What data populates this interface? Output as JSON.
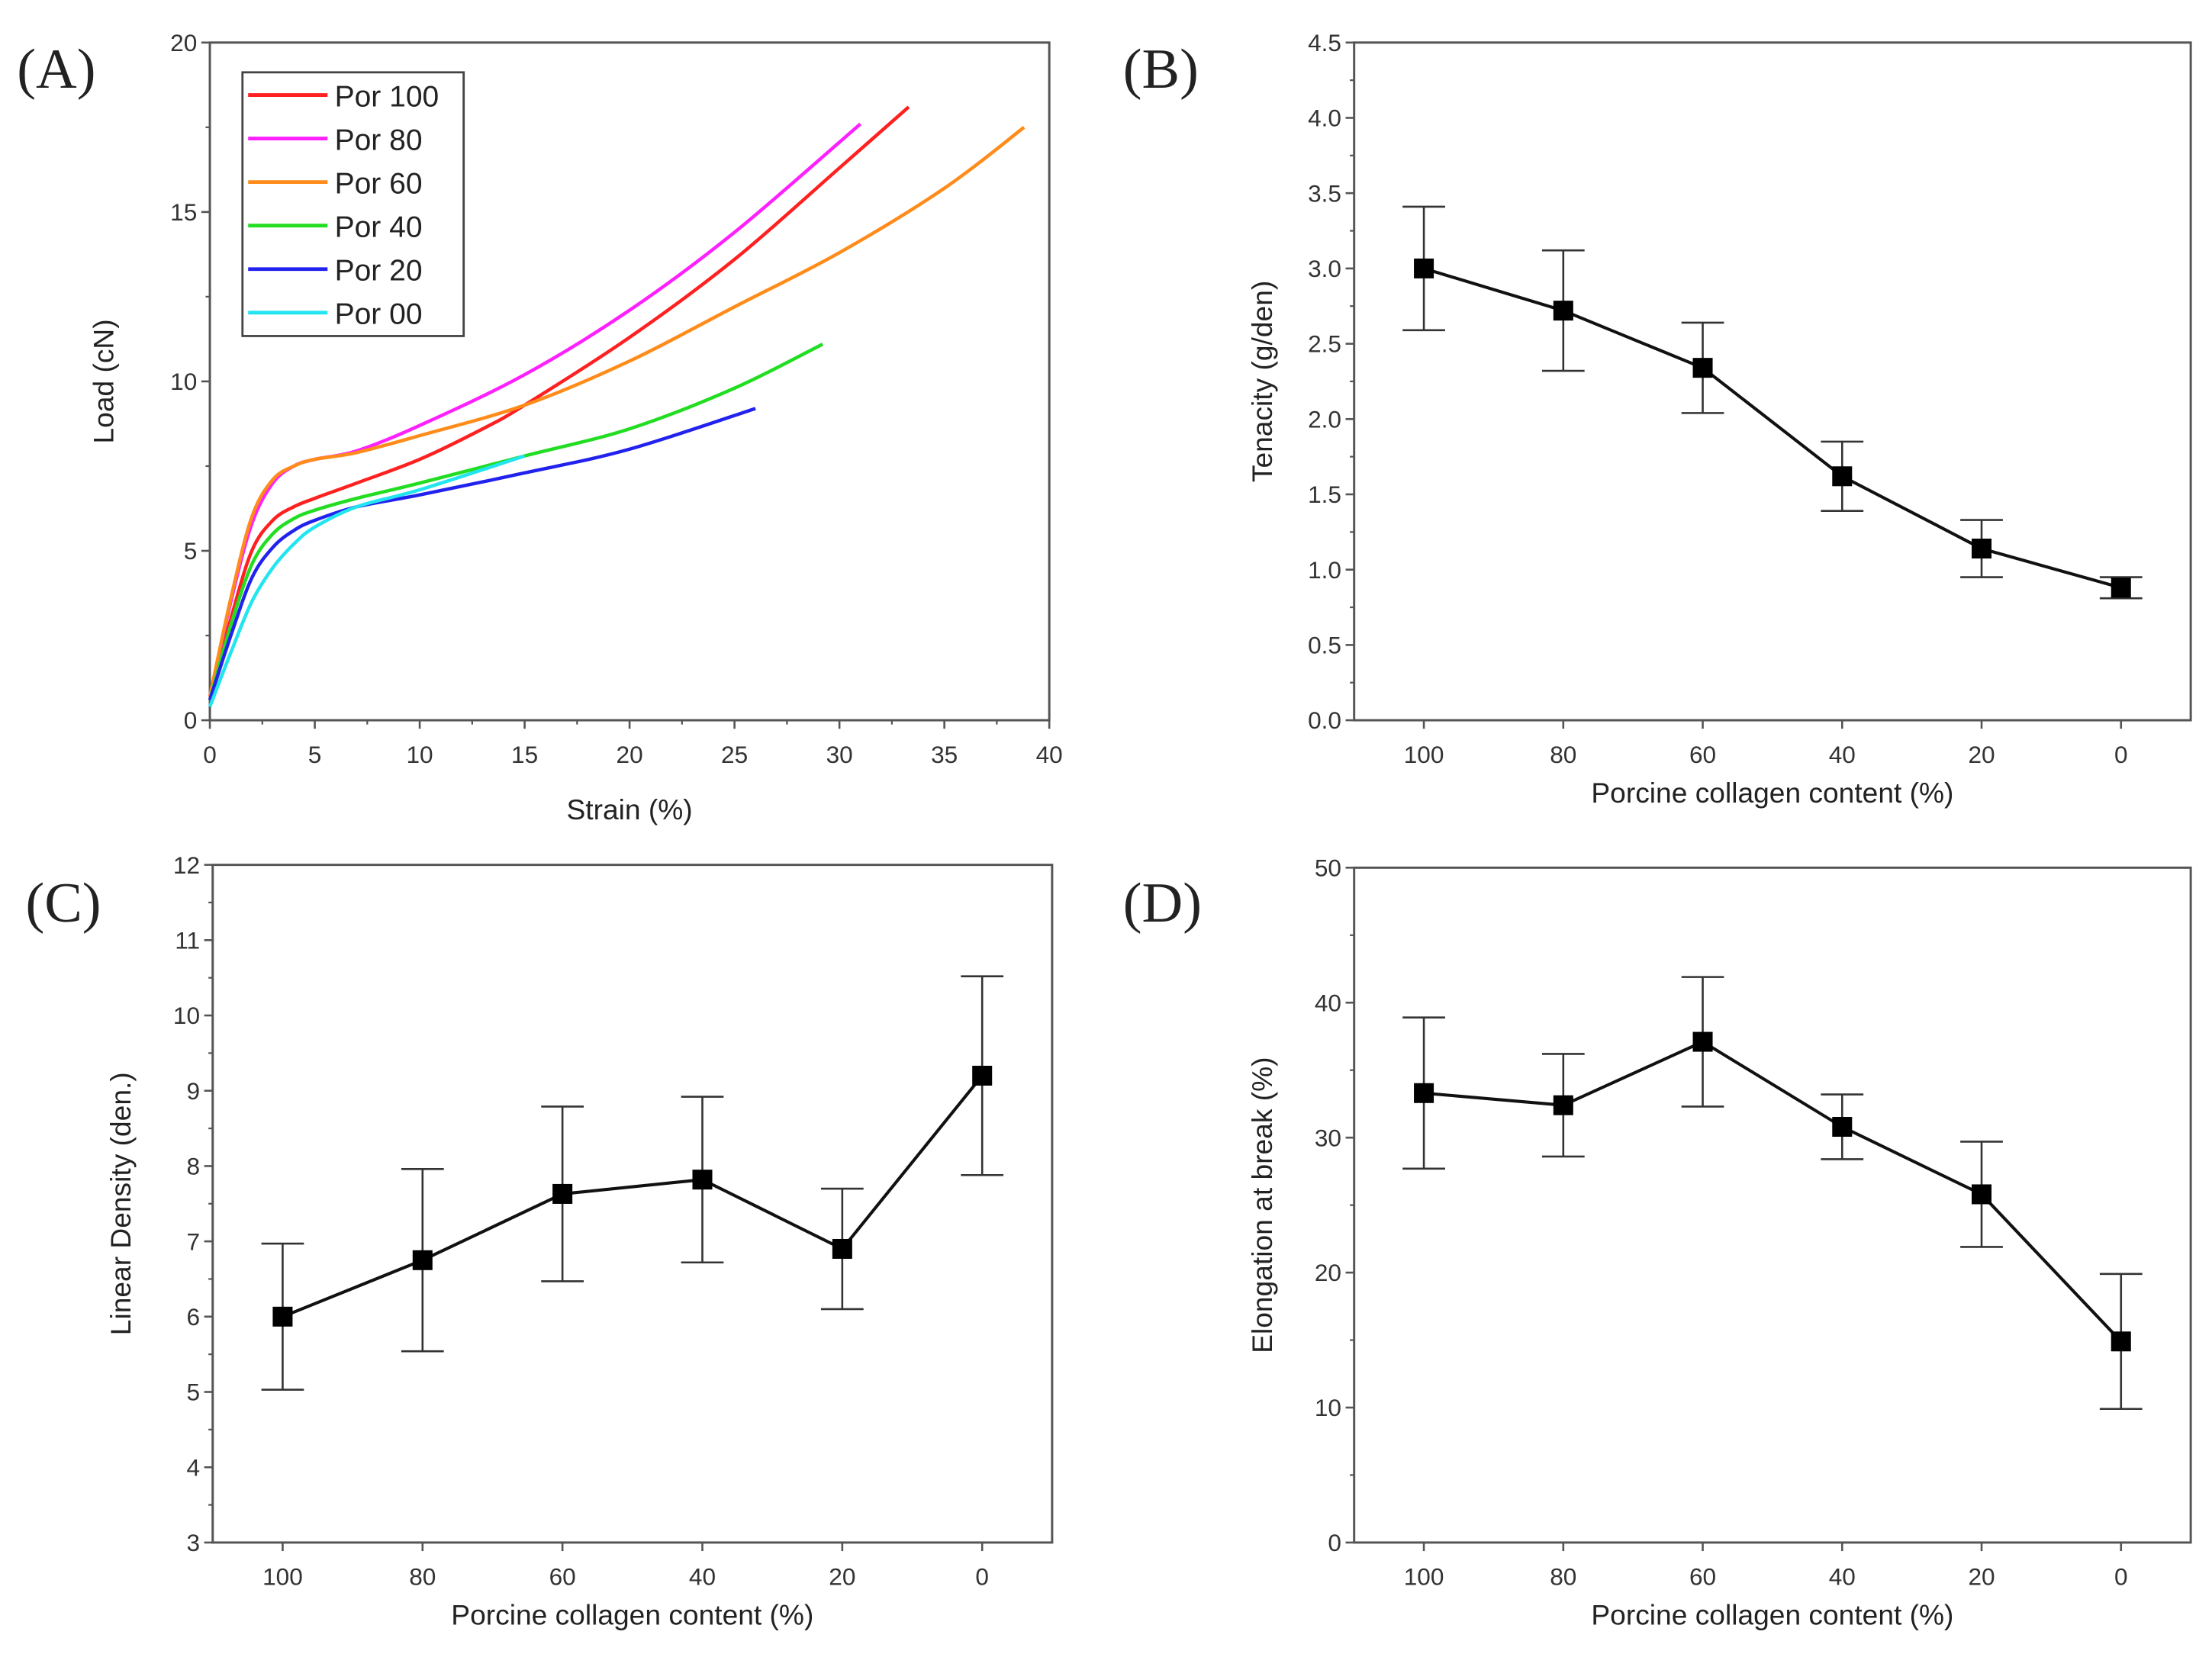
{
  "chart_data": [
    {
      "panel": "(A)",
      "type": "line",
      "xlabel": "Strain (%)",
      "ylabel": "Load (cN)",
      "xlim": [
        0,
        40
      ],
      "ylim": [
        0,
        20
      ],
      "xticks": [
        0,
        5,
        10,
        15,
        20,
        25,
        30,
        35,
        40
      ],
      "yticks": [
        0,
        5,
        10,
        15,
        20
      ],
      "legend_position": "top-left",
      "series": [
        {
          "name": "Por 100",
          "color": "#ff2020",
          "points": [
            [
              0,
              0.7
            ],
            [
              1,
              3
            ],
            [
              2,
              5
            ],
            [
              3,
              5.9
            ],
            [
              4,
              6.3
            ],
            [
              5,
              6.55
            ],
            [
              7,
              7
            ],
            [
              10,
              7.7
            ],
            [
              13,
              8.6
            ],
            [
              15,
              9.3
            ],
            [
              20,
              11.3
            ],
            [
              25,
              13.6
            ],
            [
              30,
              16.3
            ],
            [
              33.3,
              18.1
            ]
          ]
        },
        {
          "name": "Por 80",
          "color": "#ff20ff",
          "points": [
            [
              0,
              0.7
            ],
            [
              1,
              3.5
            ],
            [
              2,
              5.8
            ],
            [
              3,
              7
            ],
            [
              4,
              7.5
            ],
            [
              5,
              7.7
            ],
            [
              7,
              7.95
            ],
            [
              10,
              8.7
            ],
            [
              15,
              10.2
            ],
            [
              20,
              12.1
            ],
            [
              25,
              14.4
            ],
            [
              31,
              17.6
            ]
          ]
        },
        {
          "name": "Por 60",
          "color": "#ff8c1a",
          "points": [
            [
              0,
              0.7
            ],
            [
              1,
              3.6
            ],
            [
              2,
              6
            ],
            [
              3,
              7.1
            ],
            [
              4,
              7.5
            ],
            [
              5,
              7.7
            ],
            [
              7,
              7.9
            ],
            [
              10,
              8.4
            ],
            [
              15,
              9.3
            ],
            [
              20,
              10.6
            ],
            [
              25,
              12.2
            ],
            [
              30,
              13.8
            ],
            [
              35,
              15.7
            ],
            [
              38.8,
              17.5
            ]
          ]
        },
        {
          "name": "Por 40",
          "color": "#22dd22",
          "points": [
            [
              0,
              0.6
            ],
            [
              1,
              2.8
            ],
            [
              2,
              4.6
            ],
            [
              3,
              5.5
            ],
            [
              4,
              5.95
            ],
            [
              5,
              6.2
            ],
            [
              7,
              6.55
            ],
            [
              10,
              7
            ],
            [
              15,
              7.8
            ],
            [
              20,
              8.6
            ],
            [
              25,
              9.8
            ],
            [
              29.2,
              11.1
            ]
          ]
        },
        {
          "name": "Por 20",
          "color": "#2222ee",
          "points": [
            [
              0,
              0.6
            ],
            [
              1,
              2.5
            ],
            [
              2,
              4.2
            ],
            [
              3,
              5.1
            ],
            [
              4,
              5.6
            ],
            [
              5,
              5.9
            ],
            [
              7,
              6.3
            ],
            [
              10,
              6.65
            ],
            [
              15,
              7.3
            ],
            [
              20,
              8
            ],
            [
              26,
              9.2
            ]
          ]
        },
        {
          "name": "Por 00",
          "color": "#22e5f0",
          "points": [
            [
              0,
              0.4
            ],
            [
              1,
              2
            ],
            [
              2,
              3.5
            ],
            [
              3,
              4.5
            ],
            [
              4,
              5.2
            ],
            [
              5,
              5.7
            ],
            [
              7,
              6.3
            ],
            [
              10,
              6.8
            ],
            [
              15,
              7.8
            ]
          ]
        }
      ]
    },
    {
      "panel": "(B)",
      "type": "line",
      "xlabel": "Porcine collagen content (%)",
      "ylabel": "Tenacity (g/den)",
      "categories": [
        "100",
        "80",
        "60",
        "40",
        "20",
        "0"
      ],
      "x": [
        100,
        80,
        60,
        40,
        20,
        0
      ],
      "values": [
        3.0,
        2.72,
        2.34,
        1.62,
        1.14,
        0.88
      ],
      "errors": [
        0.41,
        0.4,
        0.3,
        0.23,
        0.19,
        0.07
      ],
      "ylim": [
        0,
        4.5
      ],
      "xlim": [
        110,
        -10
      ],
      "yticks": [
        "0.0",
        "0.5",
        "1.0",
        "1.5",
        "2.0",
        "2.5",
        "3.0",
        "3.5",
        "4.0",
        "4.5"
      ]
    },
    {
      "panel": "(C)",
      "type": "line",
      "xlabel": "Porcine collagen content (%)",
      "ylabel": "Linear Density (den.)",
      "categories": [
        "100",
        "80",
        "60",
        "40",
        "20",
        "0"
      ],
      "x": [
        100,
        80,
        60,
        40,
        20,
        0
      ],
      "values": [
        6.0,
        6.75,
        7.63,
        7.82,
        6.9,
        9.2
      ],
      "errors": [
        0.97,
        1.21,
        1.16,
        1.1,
        0.8,
        1.32
      ],
      "ylim": [
        3,
        12
      ],
      "xlim": [
        110,
        -10
      ],
      "yticks": [
        "3",
        "4",
        "5",
        "6",
        "7",
        "8",
        "9",
        "10",
        "11",
        "12"
      ]
    },
    {
      "panel": "(D)",
      "type": "line",
      "xlabel": "Porcine collagen content (%)",
      "ylabel": "Elongation at break (%)",
      "categories": [
        "100",
        "80",
        "60",
        "40",
        "20",
        "0"
      ],
      "x": [
        100,
        80,
        60,
        40,
        20,
        0
      ],
      "values": [
        33.3,
        32.4,
        37.1,
        30.8,
        25.8,
        14.9
      ],
      "errors": [
        5.6,
        3.8,
        4.8,
        2.4,
        3.9,
        5.0
      ],
      "ylim": [
        0,
        50
      ],
      "xlim": [
        110,
        -10
      ],
      "yticks": [
        "0",
        "10",
        "20",
        "30",
        "40",
        "50"
      ]
    }
  ]
}
